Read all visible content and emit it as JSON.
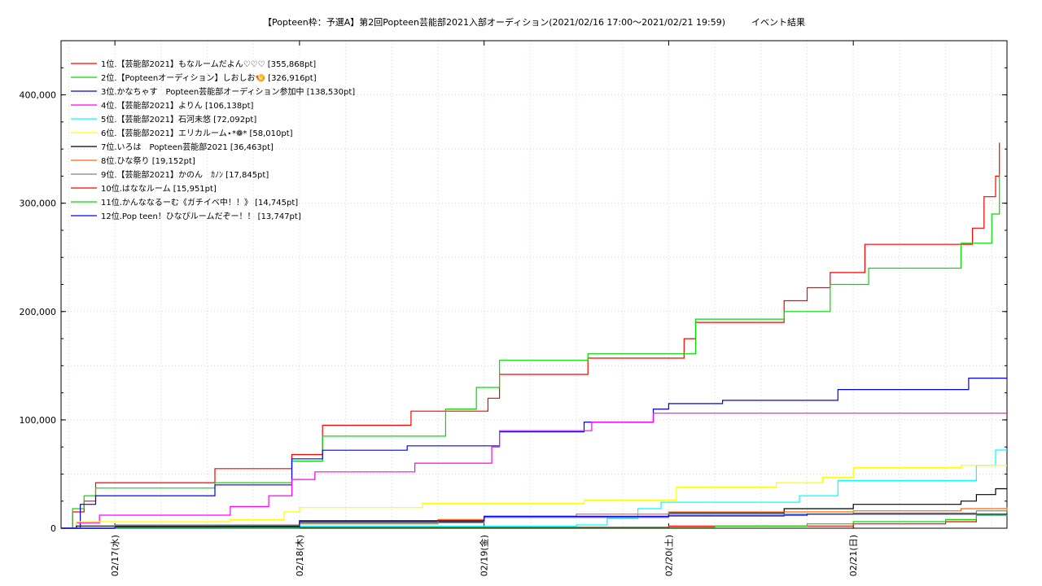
{
  "chart_data": {
    "type": "line",
    "title": "【Popteen枠：予選A】第2回Popteen芸能部2021入部オーディション(2021/02/16 17:00〜2021/02/21 19:59)",
    "subtitle": "イベント結果",
    "ylim": [
      0,
      450000
    ],
    "xlim": [
      "2021-02-16 17:00",
      "2021-02-21 19:59"
    ],
    "y_ticks": [
      0,
      100000,
      200000,
      300000,
      400000
    ],
    "y_tick_labels": [
      "0",
      "100,000",
      "200,000",
      "300,000",
      "400,000"
    ],
    "x_ticks": [
      "2021-02-17 00:00",
      "2021-02-18 00:00",
      "2021-02-19 00:00",
      "2021-02-20 00:00",
      "2021-02-21 00:00"
    ],
    "x_tick_labels": [
      "02/17(水)",
      "02/18(木)",
      "02/19(金)",
      "02/20(土)",
      "02/21(日)"
    ],
    "grid": true,
    "legend_position": "top-left",
    "series": [
      {
        "name": "1位.【芸能部2021】もなルームだよん♡♡♡ [355,868pt]",
        "color": "#ff0000",
        "points": [
          [
            "02/16 17:00",
            0
          ],
          [
            "02/16 18:30",
            15000
          ],
          [
            "02/16 20:00",
            25000
          ],
          [
            "02/16 21:30",
            42000
          ],
          [
            "02/17 12:00",
            42000
          ],
          [
            "02/17 13:00",
            55000
          ],
          [
            "02/17 21:30",
            55000
          ],
          [
            "02/17 23:00",
            68000
          ],
          [
            "02/18 03:00",
            95000
          ],
          [
            "02/18 13:30",
            95000
          ],
          [
            "02/18 14:30",
            108000
          ],
          [
            "02/18 23:00",
            108000
          ],
          [
            "02/19 00:30",
            120000
          ],
          [
            "02/19 02:00",
            142000
          ],
          [
            "02/19 12:30",
            142000
          ],
          [
            "02/19 13:30",
            157000
          ],
          [
            "02/20 00:00",
            157000
          ],
          [
            "02/20 02:00",
            175000
          ],
          [
            "02/20 03:30",
            190000
          ],
          [
            "02/20 13:30",
            190000
          ],
          [
            "02/20 15:00",
            210000
          ],
          [
            "02/20 18:00",
            222000
          ],
          [
            "02/20 21:00",
            236000
          ],
          [
            "02/21 01:30",
            262000
          ],
          [
            "02/21 14:00",
            262000
          ],
          [
            "02/21 15:30",
            277000
          ],
          [
            "02/21 17:00",
            306000
          ],
          [
            "02/21 18:30",
            325000
          ],
          [
            "02/21 19:00",
            355868
          ]
        ]
      },
      {
        "name": "2位.【Popteenオーディション】しおしお🍤 [326,916pt]",
        "color": "#00dd00",
        "points": [
          [
            "02/16 17:00",
            0
          ],
          [
            "02/16 18:30",
            18000
          ],
          [
            "02/16 20:00",
            30000
          ],
          [
            "02/16 21:30",
            37000
          ],
          [
            "02/17 12:00",
            37000
          ],
          [
            "02/17 13:00",
            42000
          ],
          [
            "02/17 21:30",
            42000
          ],
          [
            "02/17 23:00",
            62000
          ],
          [
            "02/18 03:00",
            85000
          ],
          [
            "02/18 15:00",
            85000
          ],
          [
            "02/18 19:00",
            110000
          ],
          [
            "02/18 23:00",
            130000
          ],
          [
            "02/19 02:00",
            155000
          ],
          [
            "02/19 12:30",
            155000
          ],
          [
            "02/19 13:30",
            161000
          ],
          [
            "02/20 00:00",
            161000
          ],
          [
            "02/20 03:30",
            193000
          ],
          [
            "02/20 14:00",
            193000
          ],
          [
            "02/20 15:00",
            200000
          ],
          [
            "02/20 18:00",
            200000
          ],
          [
            "02/20 21:00",
            225000
          ],
          [
            "02/21 02:00",
            240000
          ],
          [
            "02/21 12:00",
            240000
          ],
          [
            "02/21 14:00",
            263000
          ],
          [
            "02/21 17:00",
            263000
          ],
          [
            "02/21 18:00",
            290000
          ],
          [
            "02/21 19:00",
            326916
          ]
        ]
      },
      {
        "name": "3位.かなちゃす　Popteen芸能部オーディション参加中 [138,530pt]",
        "color": "#0000ff",
        "points": [
          [
            "02/16 17:00",
            0
          ],
          [
            "02/16 19:30",
            22000
          ],
          [
            "02/16 21:30",
            30000
          ],
          [
            "02/17 12:00",
            30000
          ],
          [
            "02/17 13:00",
            40000
          ],
          [
            "02/17 21:30",
            40000
          ],
          [
            "02/17 23:00",
            64000
          ],
          [
            "02/18 03:00",
            72000
          ],
          [
            "02/18 13:00",
            72000
          ],
          [
            "02/18 14:00",
            76000
          ],
          [
            "02/19 00:00",
            76000
          ],
          [
            "02/19 02:00",
            89000
          ],
          [
            "02/19 12:00",
            89000
          ],
          [
            "02/19 13:00",
            98000
          ],
          [
            "02/19 20:00",
            98000
          ],
          [
            "02/19 22:00",
            110000
          ],
          [
            "02/20 00:00",
            115000
          ],
          [
            "02/20 06:00",
            115000
          ],
          [
            "02/20 07:00",
            118000
          ],
          [
            "02/20 20:00",
            118000
          ],
          [
            "02/20 22:00",
            128000
          ],
          [
            "02/21 14:00",
            128000
          ],
          [
            "02/21 15:00",
            138530
          ],
          [
            "02/21 19:59",
            138530
          ]
        ]
      },
      {
        "name": "4位.【芸能部2021】よりん [106,138pt]",
        "color": "#ff00ff",
        "points": [
          [
            "02/16 17:00",
            0
          ],
          [
            "02/16 19:00",
            5000
          ],
          [
            "02/16 22:00",
            12000
          ],
          [
            "02/17 13:00",
            12000
          ],
          [
            "02/17 15:00",
            20000
          ],
          [
            "02/17 20:00",
            30000
          ],
          [
            "02/17 23:00",
            45000
          ],
          [
            "02/18 02:00",
            52000
          ],
          [
            "02/18 14:00",
            52000
          ],
          [
            "02/18 15:00",
            60000
          ],
          [
            "02/19 00:00",
            60000
          ],
          [
            "02/19 01:00",
            75000
          ],
          [
            "02/19 02:00",
            90000
          ],
          [
            "02/19 13:00",
            90000
          ],
          [
            "02/19 14:00",
            98000
          ],
          [
            "02/19 21:00",
            98000
          ],
          [
            "02/19 22:00",
            106138
          ],
          [
            "02/21 19:59",
            106138
          ]
        ]
      },
      {
        "name": "5位.【芸能部2021】石河未悠 [72,092pt]",
        "color": "#00ffff",
        "points": [
          [
            "02/16 17:00",
            0
          ],
          [
            "02/17 12:00",
            0
          ],
          [
            "02/17 13:00",
            2000
          ],
          [
            "02/19 12:00",
            3000
          ],
          [
            "02/19 16:00",
            9000
          ],
          [
            "02/19 20:00",
            18000
          ],
          [
            "02/19 23:00",
            24000
          ],
          [
            "02/20 12:00",
            24000
          ],
          [
            "02/20 17:00",
            30000
          ],
          [
            "02/20 22:00",
            44000
          ],
          [
            "02/21 12:00",
            44000
          ],
          [
            "02/21 16:00",
            58000
          ],
          [
            "02/21 18:30",
            72092
          ],
          [
            "02/21 19:59",
            72092
          ]
        ]
      },
      {
        "name": "6位.【芸能部2021】エリカルーム⋆*❁* [58,010pt]",
        "color": "#ffff00",
        "points": [
          [
            "02/16 17:00",
            0
          ],
          [
            "02/16 19:00",
            6000
          ],
          [
            "02/17 15:00",
            8000
          ],
          [
            "02/17 22:00",
            15000
          ],
          [
            "02/18 00:00",
            19000
          ],
          [
            "02/18 13:00",
            19000
          ],
          [
            "02/18 16:00",
            23000
          ],
          [
            "02/19 12:00",
            23000
          ],
          [
            "02/19 13:00",
            26000
          ],
          [
            "02/20 00:00",
            26000
          ],
          [
            "02/20 01:00",
            38000
          ],
          [
            "02/20 13:00",
            38000
          ],
          [
            "02/20 14:00",
            42000
          ],
          [
            "02/20 20:00",
            47000
          ],
          [
            "02/21 00:00",
            56000
          ],
          [
            "02/21 12:00",
            56000
          ],
          [
            "02/21 14:00",
            58010
          ],
          [
            "02/21 19:59",
            58010
          ]
        ]
      },
      {
        "name": "7位.いろは　Popteen芸能部2021 [36,463pt]",
        "color": "#000000",
        "points": [
          [
            "02/16 17:00",
            0
          ],
          [
            "02/16 19:00",
            2000
          ],
          [
            "02/18 00:00",
            6000
          ],
          [
            "02/19 00:00",
            10000
          ],
          [
            "02/20 00:00",
            14000
          ],
          [
            "02/20 15:00",
            18000
          ],
          [
            "02/21 00:00",
            22000
          ],
          [
            "02/21 14:00",
            25000
          ],
          [
            "02/21 16:00",
            31000
          ],
          [
            "02/21 18:30",
            36463
          ],
          [
            "02/21 19:59",
            36463
          ]
        ]
      },
      {
        "name": "8位.ひな祭り [19,152pt]",
        "color": "#ff6600",
        "points": [
          [
            "02/16 17:00",
            0
          ],
          [
            "02/18 00:00",
            4000
          ],
          [
            "02/18 18:00",
            8000
          ],
          [
            "02/19 00:00",
            11000
          ],
          [
            "02/19 12:00",
            13000
          ],
          [
            "02/20 00:00",
            15000
          ],
          [
            "02/21 00:00",
            16000
          ],
          [
            "02/21 14:00",
            18000
          ],
          [
            "02/21 19:59",
            19152
          ]
        ]
      },
      {
        "name": "9位.【芸能部2021】かのん　ｶﾉﾝ [17,845pt]",
        "color": "#808080",
        "points": [
          [
            "02/16 17:00",
            0
          ],
          [
            "02/17 00:00",
            3000
          ],
          [
            "02/18 00:00",
            5000
          ],
          [
            "02/19 00:00",
            10000
          ],
          [
            "02/20 00:00",
            11000
          ],
          [
            "02/20 15:00",
            13000
          ],
          [
            "02/21 00:00",
            14000
          ],
          [
            "02/21 16:00",
            16000
          ],
          [
            "02/21 19:59",
            17845
          ]
        ]
      },
      {
        "name": "10位.はななルーム [15,951pt]",
        "color": "#ff0000",
        "points": [
          [
            "02/16 17:00",
            0
          ],
          [
            "02/18 00:00",
            1000
          ],
          [
            "02/20 00:00",
            2000
          ],
          [
            "02/21 00:00",
            4000
          ],
          [
            "02/21 12:00",
            6000
          ],
          [
            "02/21 16:00",
            12000
          ],
          [
            "02/21 19:59",
            15951
          ]
        ]
      },
      {
        "name": "11位.かんななるーむ《ガチイベ中！！》 [14,745pt]",
        "color": "#00dd00",
        "points": [
          [
            "02/16 17:00",
            0
          ],
          [
            "02/18 00:00",
            1000
          ],
          [
            "02/20 06:00",
            2000
          ],
          [
            "02/20 18:00",
            4000
          ],
          [
            "02/21 00:00",
            6000
          ],
          [
            "02/21 12:00",
            8000
          ],
          [
            "02/21 16:00",
            12000
          ],
          [
            "02/21 19:59",
            14745
          ]
        ]
      },
      {
        "name": "12位.Pop teen！ひなぴルームだぞー！！ [13,747pt]",
        "color": "#0000ff",
        "points": [
          [
            "02/16 17:00",
            0
          ],
          [
            "02/17 00:00",
            1000
          ],
          [
            "02/18 00:00",
            7000
          ],
          [
            "02/19 00:00",
            11000
          ],
          [
            "02/20 00:00",
            12000
          ],
          [
            "02/20 18:00",
            13000
          ],
          [
            "02/21 19:59",
            13747
          ]
        ]
      }
    ]
  }
}
